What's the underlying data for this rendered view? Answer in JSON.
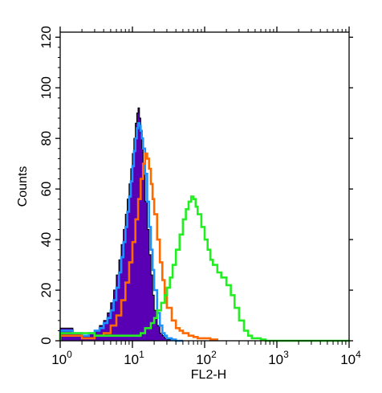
{
  "chart_data": {
    "type": "area",
    "title": "",
    "xlabel": "FL2-H",
    "ylabel": "Counts",
    "x_scale": "log",
    "xlim": [
      1,
      10000
    ],
    "ylim": [
      0,
      122
    ],
    "grid": false,
    "legend": "none",
    "x_ticks": [
      {
        "value": 1,
        "base": "10",
        "exp": "0"
      },
      {
        "value": 10,
        "base": "10",
        "exp": "1"
      },
      {
        "value": 100,
        "base": "10",
        "exp": "2"
      },
      {
        "value": 1000,
        "base": "10",
        "exp": "3"
      },
      {
        "value": 10000,
        "base": "10",
        "exp": "4"
      }
    ],
    "y_ticks": [
      0,
      20,
      40,
      60,
      80,
      100,
      120
    ],
    "series": [
      {
        "color": "#5a00b4",
        "fill": true,
        "x": [
          1,
          1.5,
          2,
          2.5,
          3,
          3.5,
          4,
          4.5,
          5,
          5.5,
          6,
          6.5,
          7,
          7.5,
          8,
          8.5,
          9,
          9.5,
          10,
          10.5,
          11,
          11.5,
          12,
          12.5,
          13,
          13.5,
          14,
          15,
          16,
          17,
          18,
          19,
          20,
          22,
          24,
          26,
          28,
          30,
          35,
          40,
          50
        ],
        "y": [
          5,
          3,
          2,
          3,
          4,
          6,
          8,
          11,
          15,
          20,
          26,
          32,
          38,
          44,
          50,
          56,
          62,
          68,
          74,
          80,
          86,
          90,
          92,
          88,
          82,
          76,
          68,
          55,
          44,
          34,
          26,
          18,
          12,
          6,
          3,
          2,
          1,
          0.5,
          0.3,
          0,
          0
        ]
      },
      {
        "color": "#1e90ff",
        "fill": false,
        "x": [
          1,
          1.5,
          2,
          2.5,
          3,
          3.5,
          4,
          4.5,
          5,
          5.5,
          6,
          6.5,
          7,
          7.5,
          8,
          8.5,
          9,
          9.5,
          10,
          10.5,
          11,
          11.5,
          12,
          12.5,
          13,
          13.5,
          14,
          15,
          16,
          17,
          18,
          19,
          20,
          22,
          24,
          26,
          28,
          30,
          35,
          40,
          50
        ],
        "y": [
          4,
          3,
          2,
          3,
          4,
          5,
          7,
          9,
          12,
          16,
          21,
          27,
          33,
          39,
          45,
          51,
          57,
          63,
          69,
          75,
          80,
          84,
          86,
          85,
          83,
          80,
          76,
          66,
          55,
          45,
          36,
          28,
          20,
          11,
          6,
          3,
          2,
          1,
          0.5,
          0,
          0
        ]
      },
      {
        "color": "#ff6a00",
        "fill": false,
        "x": [
          1,
          2,
          3,
          4,
          5,
          6,
          7,
          8,
          9,
          10,
          11,
          12,
          13,
          14,
          15,
          16,
          17,
          18,
          19,
          20,
          22,
          24,
          26,
          28,
          30,
          35,
          40,
          45,
          50,
          60,
          70,
          80,
          100,
          120,
          150
        ],
        "y": [
          2,
          1,
          2,
          3,
          6,
          10,
          16,
          23,
          31,
          39,
          48,
          56,
          64,
          70,
          74,
          72,
          68,
          62,
          56,
          50,
          40,
          31,
          24,
          18,
          13,
          8,
          5,
          4,
          3,
          2,
          1.5,
          1,
          1,
          0.5,
          0
        ]
      },
      {
        "color": "#22ee22",
        "fill": false,
        "x": [
          1,
          3,
          6,
          10,
          13,
          15,
          18,
          20,
          22,
          25,
          28,
          30,
          33,
          36,
          40,
          45,
          50,
          55,
          60,
          65,
          70,
          75,
          80,
          90,
          100,
          110,
          120,
          130,
          150,
          170,
          200,
          230,
          260,
          300,
          350,
          400,
          450,
          500,
          600,
          700,
          1000,
          10000
        ],
        "y": [
          3,
          2,
          2,
          2,
          3,
          5,
          7,
          9,
          12,
          15,
          18,
          21,
          25,
          30,
          36,
          42,
          48,
          52,
          55,
          57,
          56,
          53,
          50,
          45,
          40,
          36,
          32,
          30,
          27,
          25,
          22,
          18,
          13,
          8,
          4,
          2,
          1,
          1,
          0.5,
          0,
          0,
          0
        ]
      }
    ]
  }
}
